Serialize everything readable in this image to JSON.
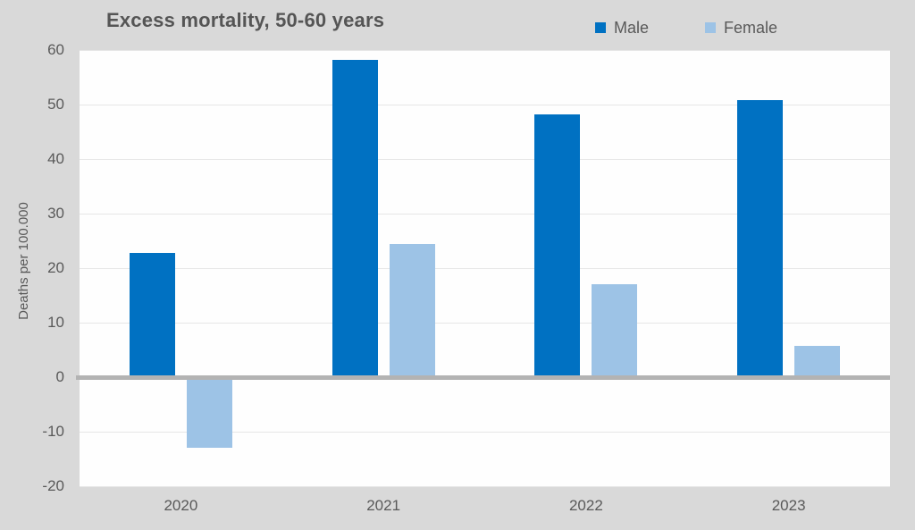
{
  "chart_data": {
    "type": "bar",
    "title": "Excess mortality, 50-60 years",
    "ylabel": "Deaths per 100.000",
    "xlabel": "",
    "categories": [
      "2020",
      "2021",
      "2022",
      "2023"
    ],
    "series": [
      {
        "name": "Male",
        "color": "#0071c2",
        "values": [
          22.8,
          58.2,
          48.2,
          50.9
        ]
      },
      {
        "name": "Female",
        "color": "#9dc3e6",
        "values": [
          -13.0,
          24.5,
          17.1,
          5.8
        ]
      }
    ],
    "ylim": [
      -20,
      60
    ],
    "yticks": [
      60,
      50,
      40,
      30,
      20,
      10,
      0,
      -10,
      -20
    ],
    "grid": "horizontal",
    "legend_position": "top-right"
  },
  "colors": {
    "background": "#d9d9d9",
    "plot_background": "#fefefe",
    "gridline": "#e7e7e7",
    "zero_line": "#b3b3b3",
    "text": "#595959"
  }
}
